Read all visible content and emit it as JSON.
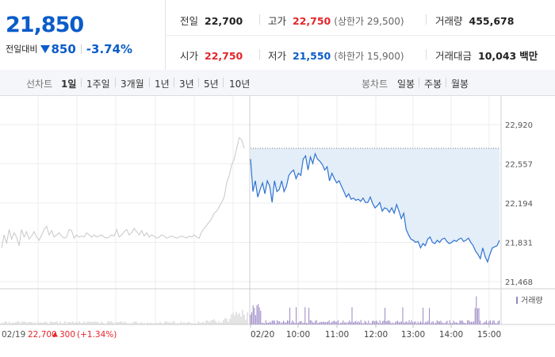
{
  "summary": {
    "current_price": "21,850",
    "change_label": "전일대비",
    "change_abs": "850",
    "change_pct": "-3.74%"
  },
  "stats": {
    "prev_close_label": "전일",
    "prev_close": "22,700",
    "open_label": "시가",
    "open": "22,750",
    "high_label": "고가",
    "high": "22,750",
    "upper_limit": "(상한가 29,500)",
    "low_label": "저가",
    "low": "21,550",
    "lower_limit": "(하한가 15,900)",
    "volume_label": "거래량",
    "volume": "455,678",
    "amount_label": "거래대금",
    "amount": "10,043",
    "amount_unit": "백만"
  },
  "tabs": {
    "line_header": "선차트",
    "line_tabs": [
      "1일",
      "1주일",
      "3개월",
      "1년",
      "3년",
      "5년",
      "10년"
    ],
    "active_line_tab": "1일",
    "candle_header": "봉차트",
    "candle_tabs": [
      "일봉",
      "주봉",
      "월봉"
    ]
  },
  "colors": {
    "up": "#e4252b",
    "down": "#0b5cc9",
    "prev_day_line": "#c8c8c8",
    "today_fill": "#e3eef9",
    "volume_bar": "#9a86c4"
  },
  "chart_data": {
    "type": "line",
    "ylim": [
      21468,
      22920
    ],
    "y_ticks": [
      "22,920",
      "22,557",
      "22,194",
      "21,831",
      "21,468"
    ],
    "x_labels": [
      "02/20",
      "10:00",
      "11:00",
      "12:00",
      "13:00",
      "14:00",
      "15:00"
    ],
    "volume_legend": "거래량",
    "reference_line": 22700,
    "prev_day": {
      "date": "02/19",
      "close": "22,700",
      "change": "300",
      "change_pct": "(+1.34%)",
      "values": [
        21780,
        21900,
        21820,
        21950,
        21860,
        21920,
        21880,
        21800,
        21950,
        21880,
        21930,
        21860,
        21890,
        21930,
        21880,
        21850,
        21900,
        21950,
        21980,
        21900,
        21940,
        21880,
        21900,
        21920,
        21890,
        21870,
        21880,
        21950,
        21940,
        21870,
        21900,
        21880,
        21890,
        21880,
        21920,
        21900,
        21880,
        21900,
        21880,
        21890,
        21900,
        21880,
        21870,
        21880,
        21900,
        21890,
        21950,
        21880,
        21900,
        21930,
        21950,
        21900,
        21920,
        21960,
        21930,
        21900,
        21940,
        21890,
        21920,
        21880,
        21900,
        21890,
        21870,
        21880,
        21900,
        21890,
        21870,
        21880,
        21890,
        21880,
        21870,
        21880,
        21890,
        21880,
        21870,
        21890,
        21880,
        21900,
        21880,
        21870,
        21930,
        21960,
        21990,
        22020,
        22050,
        22100,
        22120,
        22160,
        22200,
        22250,
        22380,
        22450,
        22550,
        22600,
        22700,
        22800,
        22780,
        22700
      ]
    },
    "today": {
      "values": [
        22600,
        22300,
        22400,
        22250,
        22320,
        22380,
        22280,
        22400,
        22350,
        22200,
        22400,
        22300,
        22320,
        22400,
        22300,
        22350,
        22450,
        22480,
        22500,
        22420,
        22470,
        22450,
        22600,
        22630,
        22500,
        22620,
        22560,
        22650,
        22600,
        22580,
        22550,
        22500,
        22530,
        22400,
        22470,
        22420,
        22380,
        22400,
        22350,
        22300,
        22250,
        22280,
        22230,
        22240,
        22220,
        22230,
        22210,
        22240,
        22200,
        22200,
        22250,
        22190,
        22150,
        22170,
        22200,
        22120,
        22150,
        22140,
        22110,
        22150,
        22100,
        22180,
        22120,
        22050,
        22100,
        21950,
        21900,
        21860,
        21850,
        21830,
        21840,
        21780,
        21820,
        21800,
        21860,
        21880,
        21830,
        21820,
        21850,
        21830,
        21860,
        21870,
        21840,
        21820,
        21830,
        21850,
        21840,
        21860,
        21870,
        21840,
        21850,
        21870,
        21830,
        21800,
        21750,
        21720,
        21680,
        21780,
        21700,
        21650,
        21720,
        21780,
        21790,
        21800,
        21850
      ]
    }
  }
}
